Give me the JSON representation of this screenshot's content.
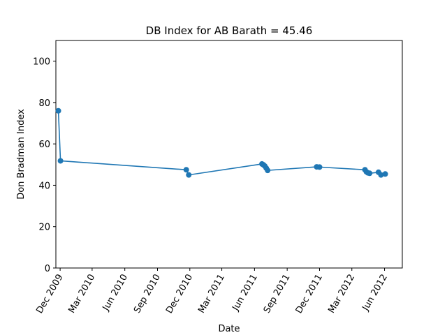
{
  "chart_data": {
    "type": "line",
    "title": "DB Index for AB Barath = 45.46",
    "xlabel": "Date",
    "ylabel": "Don Bradman Index",
    "xlim": [
      "2009-11-19",
      "2012-07-21"
    ],
    "ylim": [
      0,
      110
    ],
    "x_ticks": [
      {
        "date": "2009-12-01",
        "label": "Dec 2009"
      },
      {
        "date": "2010-03-01",
        "label": "Mar 2010"
      },
      {
        "date": "2010-06-01",
        "label": "Jun 2010"
      },
      {
        "date": "2010-09-01",
        "label": "Sep 2010"
      },
      {
        "date": "2010-12-01",
        "label": "Dec 2010"
      },
      {
        "date": "2011-03-01",
        "label": "Mar 2011"
      },
      {
        "date": "2011-06-01",
        "label": "Jun 2011"
      },
      {
        "date": "2011-09-01",
        "label": "Sep 2011"
      },
      {
        "date": "2011-12-01",
        "label": "Dec 2011"
      },
      {
        "date": "2012-03-01",
        "label": "Mar 2012"
      },
      {
        "date": "2012-06-01",
        "label": "Jun 2012"
      }
    ],
    "y_ticks": [
      0,
      20,
      40,
      60,
      80,
      100
    ],
    "series": [
      {
        "color": "#1f77b4",
        "points": [
          {
            "x": "2009-11-26",
            "y": 76.0
          },
          {
            "x": "2009-12-02",
            "y": 51.8
          },
          {
            "x": "2010-11-21",
            "y": 47.5
          },
          {
            "x": "2010-11-28",
            "y": 45.0
          },
          {
            "x": "2011-06-22",
            "y": 50.3
          },
          {
            "x": "2011-06-26",
            "y": 49.9
          },
          {
            "x": "2011-06-30",
            "y": 49.3
          },
          {
            "x": "2011-07-04",
            "y": 48.3
          },
          {
            "x": "2011-07-08",
            "y": 47.2
          },
          {
            "x": "2011-11-23",
            "y": 48.9
          },
          {
            "x": "2011-12-01",
            "y": 48.8
          },
          {
            "x": "2012-04-07",
            "y": 47.5
          },
          {
            "x": "2012-04-11",
            "y": 46.5
          },
          {
            "x": "2012-04-15",
            "y": 46.0
          },
          {
            "x": "2012-04-20",
            "y": 45.8
          },
          {
            "x": "2012-05-15",
            "y": 46.3
          },
          {
            "x": "2012-05-22",
            "y": 45.0
          },
          {
            "x": "2012-06-03",
            "y": 45.46
          }
        ]
      }
    ],
    "grid": false,
    "legend": "none"
  }
}
